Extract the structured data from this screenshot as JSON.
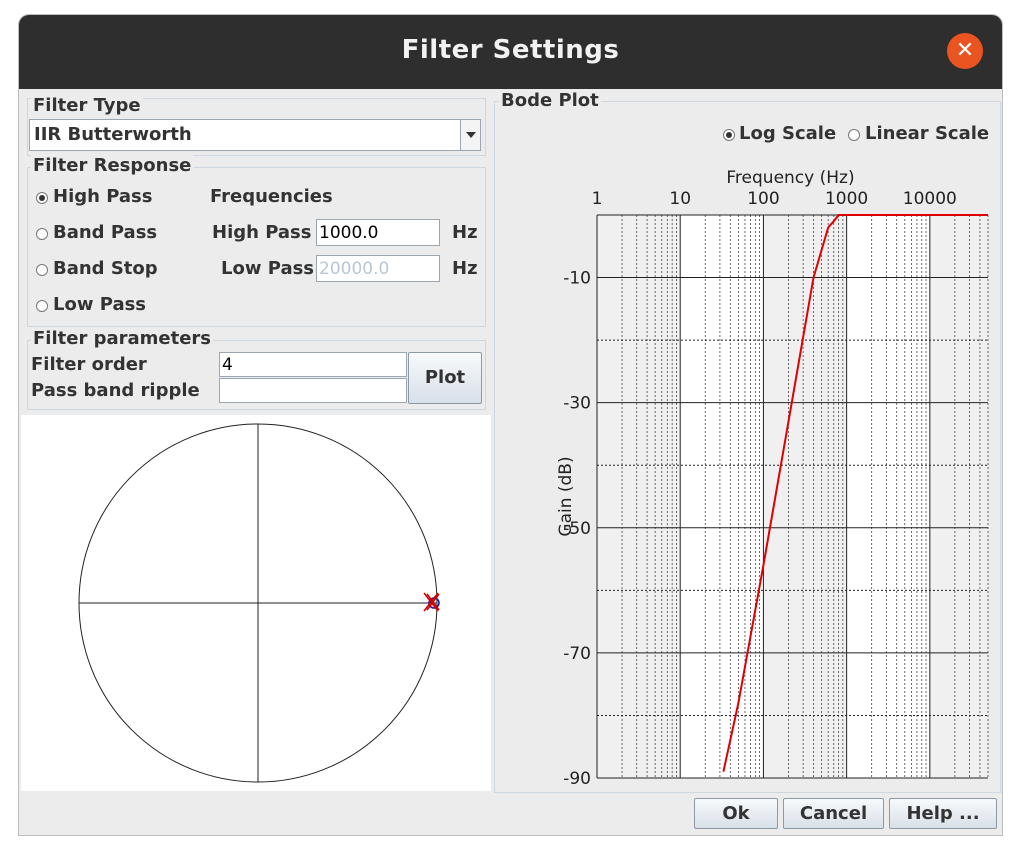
{
  "window": {
    "title": "Filter Settings"
  },
  "filter_type": {
    "legend": "Filter Type",
    "selected": "IIR Butterworth"
  },
  "filter_response": {
    "legend": "Filter Response",
    "options": [
      "High Pass",
      "Band Pass",
      "Band Stop",
      "Low Pass"
    ],
    "selected": "High Pass",
    "frequencies_heading": "Frequencies",
    "high_pass_label": "High Pass",
    "high_pass_value": "1000.0",
    "low_pass_label": "Low Pass",
    "low_pass_value": "20000.0",
    "unit": "Hz"
  },
  "filter_parameters": {
    "legend": "Filter parameters",
    "order_label": "Filter order",
    "order_value": "4",
    "ripple_label": "Pass band ripple",
    "ripple_value": "",
    "plot_button": "Plot"
  },
  "bode": {
    "legend": "Bode Plot",
    "log_scale": "Log Scale",
    "linear_scale": "Linear Scale",
    "scale_selected": "Log Scale",
    "line_color": "#e00000"
  },
  "chart_data": {
    "type": "line",
    "xlabel": "Frequency (Hz)",
    "ylabel": "Gain (dB)",
    "x_scale": "log",
    "x_ticks": [
      "1",
      "10",
      "100",
      "1000",
      "10000"
    ],
    "y_ticks": [
      "-10",
      "-30",
      "-50",
      "-70",
      "-90"
    ],
    "xlim": [
      1,
      50000
    ],
    "ylim": [
      -90,
      0
    ],
    "grid": true,
    "series": [
      {
        "x": [
          33,
          50,
          100,
          200,
          400,
          600,
          700,
          800,
          1000,
          2000,
          5000,
          10000,
          50000
        ],
        "y": [
          -89,
          -78,
          -56,
          -33,
          -10,
          -2,
          -1,
          0,
          0,
          0,
          0,
          0,
          0
        ]
      }
    ]
  },
  "pole_zero": {
    "zero_color": "#1a1aa6",
    "pole_color": "#cc0000"
  },
  "buttons": {
    "ok": "Ok",
    "cancel": "Cancel",
    "help": "Help ..."
  }
}
